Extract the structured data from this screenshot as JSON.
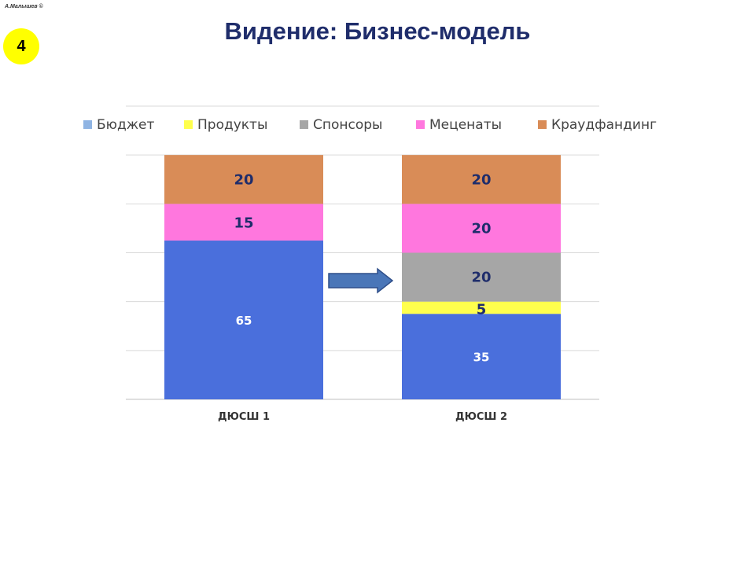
{
  "slide": {
    "author": "А.Малышев ©",
    "number": "4",
    "title": "Видение: Бизнес-модель"
  },
  "colors": {
    "Бюджет": "#4a6fdc",
    "Продукты": "#ffff4d",
    "Спонсоры": "#a6a6a6",
    "Меценаты": "#ff77de",
    "Краудфандинг": "#d98c57",
    "legend_budget_swatch": "#8fb4e3",
    "arrow": "#4a76b8"
  },
  "chart_data": {
    "type": "bar",
    "stacked": true,
    "categories": [
      "ДЮСШ 1",
      "ДЮСШ 2"
    ],
    "series": [
      {
        "name": "Бюджет",
        "values": [
          65,
          35
        ]
      },
      {
        "name": "Продукты",
        "values": [
          0,
          5
        ]
      },
      {
        "name": "Спонсоры",
        "values": [
          0,
          20
        ]
      },
      {
        "name": "Меценаты",
        "values": [
          15,
          20
        ]
      },
      {
        "name": "Краудфандинг",
        "values": [
          20,
          20
        ]
      }
    ],
    "ylim": [
      0,
      120
    ],
    "grid": true,
    "legend": "top",
    "annotation": "arrow from ДЮСШ 1 to ДЮСШ 2"
  }
}
